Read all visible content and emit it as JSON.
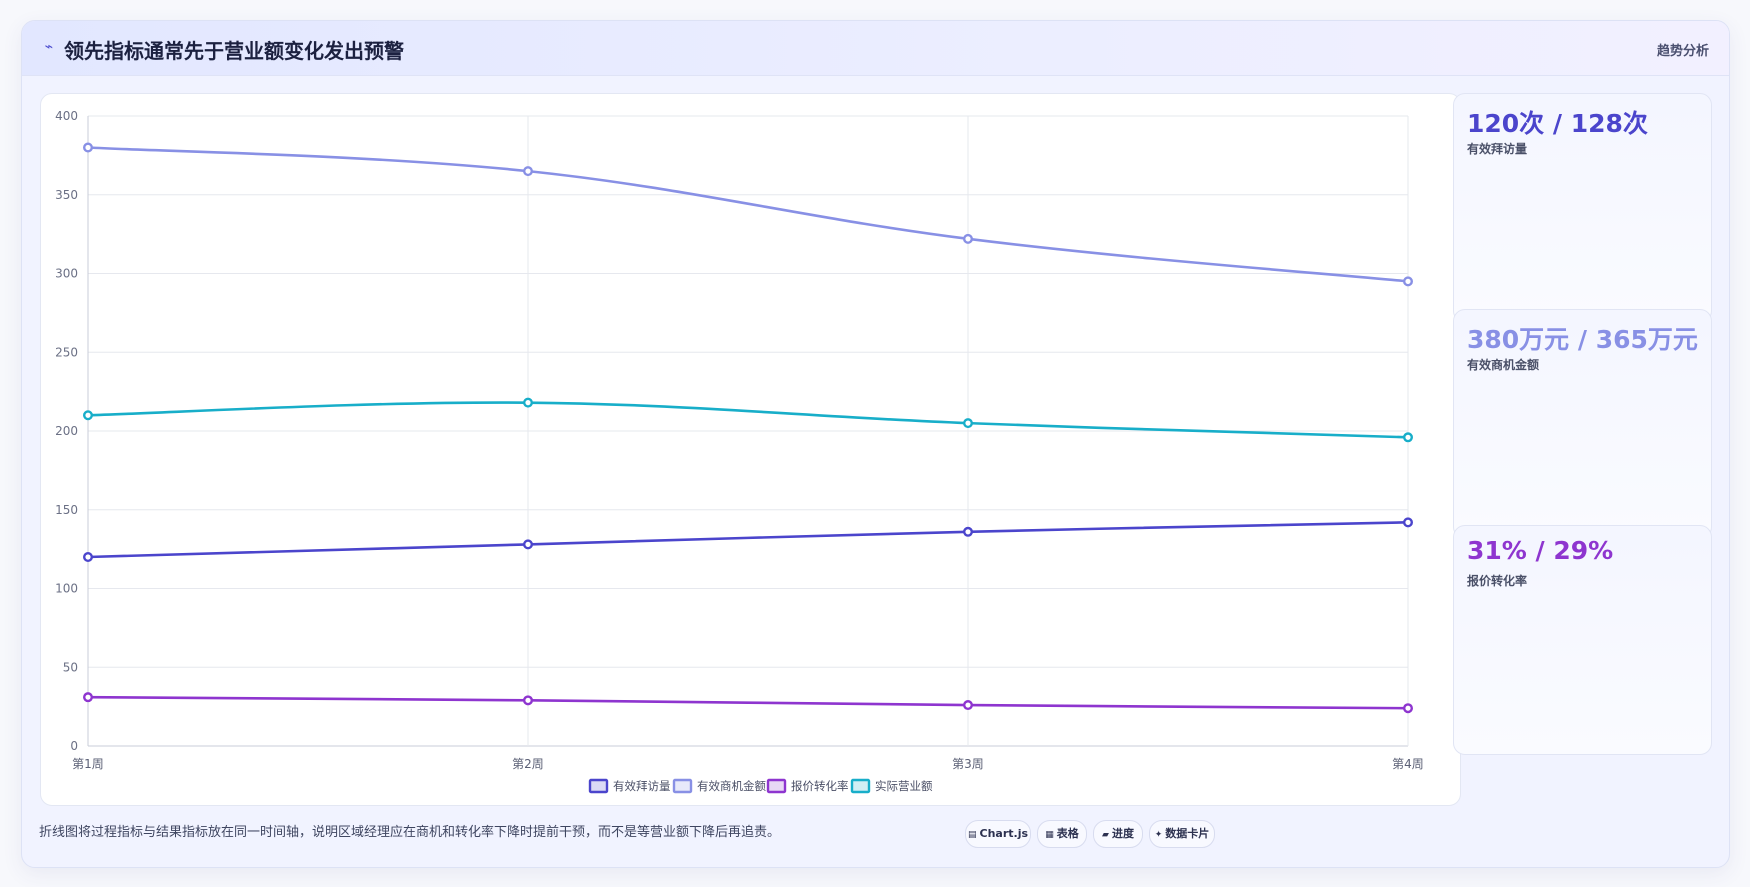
{
  "header": {
    "icon": "pulse-icon",
    "title": "领先指标通常先于营业额变化发出预警",
    "right_label": "趋势分析"
  },
  "stats": [
    {
      "value": "120次 / 128次",
      "label": "有效拜访量",
      "color": "#4b45cc"
    },
    {
      "value": "380万元 / 365万元",
      "label": "有效商机金额",
      "color": "#8890e5"
    },
    {
      "value": "31% / 29%",
      "label": "报价转化率",
      "color": "#8e35cf"
    }
  ],
  "footer": {
    "note": "折线图将过程指标与结果指标放在同一时间轴，说明区域经理应在商机和转化率下降时提前干预，而不是等营业额下降后再追责。",
    "tags": [
      {
        "icon": "chart-icon",
        "glyph": "▤",
        "label": "Chart.js"
      },
      {
        "icon": "table-icon",
        "glyph": "▦",
        "label": "表格"
      },
      {
        "icon": "progress-icon",
        "glyph": "▰",
        "label": "进度"
      },
      {
        "icon": "card-icon",
        "glyph": "✦",
        "label": "数据卡片"
      }
    ]
  },
  "chart_data": {
    "type": "line",
    "categories": [
      "第1周",
      "第2周",
      "第3周",
      "第4周"
    ],
    "ylim": [
      0,
      400
    ],
    "yticks": [
      0,
      50,
      100,
      150,
      200,
      250,
      300,
      350,
      400
    ],
    "grid": true,
    "legend_position": "bottom",
    "series": [
      {
        "name": "有效拜访量",
        "values": [
          120,
          128,
          136,
          142
        ],
        "color": "#4b45cc"
      },
      {
        "name": "有效商机金额",
        "values": [
          380,
          365,
          322,
          295
        ],
        "color": "#8890e5"
      },
      {
        "name": "报价转化率",
        "values": [
          31,
          29,
          26,
          24
        ],
        "color": "#8e35cf"
      },
      {
        "name": "实际营业额",
        "values": [
          210,
          218,
          205,
          196
        ],
        "color": "#18aec9"
      }
    ]
  }
}
